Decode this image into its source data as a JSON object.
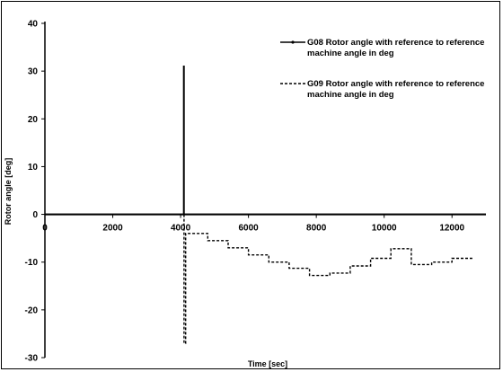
{
  "chart_data": {
    "type": "line",
    "xlabel": "Time [sec]",
    "ylabel": "Rotor angle [deg]",
    "xlim": [
      0,
      13000
    ],
    "ylim": [
      -30,
      40
    ],
    "x_ticks": [
      "0",
      "2000",
      "4000",
      "6000",
      "8000",
      "10000",
      "12000"
    ],
    "x_tick_values": [
      0,
      2000,
      4000,
      6000,
      8000,
      10000,
      12000
    ],
    "y_ticks": [
      "40",
      "30",
      "20",
      "10",
      "0",
      "-10",
      "-20",
      "-30"
    ],
    "y_tick_values": [
      40,
      30,
      20,
      10,
      0,
      -10,
      -20,
      -30
    ],
    "legend_position": "top-right",
    "series": [
      {
        "name": "G08 Rotor angle with reference to reference machine angle in deg",
        "legend_lines": [
          "G08 Rotor angle with reference to reference",
          "machine angle in deg"
        ],
        "style": "solid",
        "color": "#000000",
        "x": [
          0,
          4090,
          4090,
          4100,
          4100,
          13000
        ],
        "y": [
          0,
          0,
          31,
          31,
          0,
          0
        ]
      },
      {
        "name": "G09 Rotor angle with reference to reference machine angle in deg",
        "legend_lines": [
          "G09 Rotor angle with reference to reference",
          "machine angle in deg"
        ],
        "style": "dashed",
        "color": "#000000",
        "x": [
          4100,
          4100,
          4150,
          4150,
          4800,
          4800,
          5400,
          5400,
          6000,
          6000,
          6600,
          6600,
          7200,
          7200,
          7800,
          7800,
          8400,
          8400,
          9000,
          9000,
          9600,
          9600,
          10200,
          10200,
          10800,
          10800,
          11400,
          11400,
          12000,
          12000,
          12600
        ],
        "y": [
          0,
          -27,
          -27,
          -4,
          -4,
          -5.5,
          -5.5,
          -7,
          -7,
          -8.5,
          -8.5,
          -10,
          -10,
          -11.3,
          -11.3,
          -12.8,
          -12.8,
          -12.3,
          -12.3,
          -10.8,
          -10.8,
          -9.2,
          -9.2,
          -7.2,
          -7.2,
          -10.5,
          -10.5,
          -10,
          -10,
          -9.2,
          -9.2
        ]
      }
    ]
  }
}
